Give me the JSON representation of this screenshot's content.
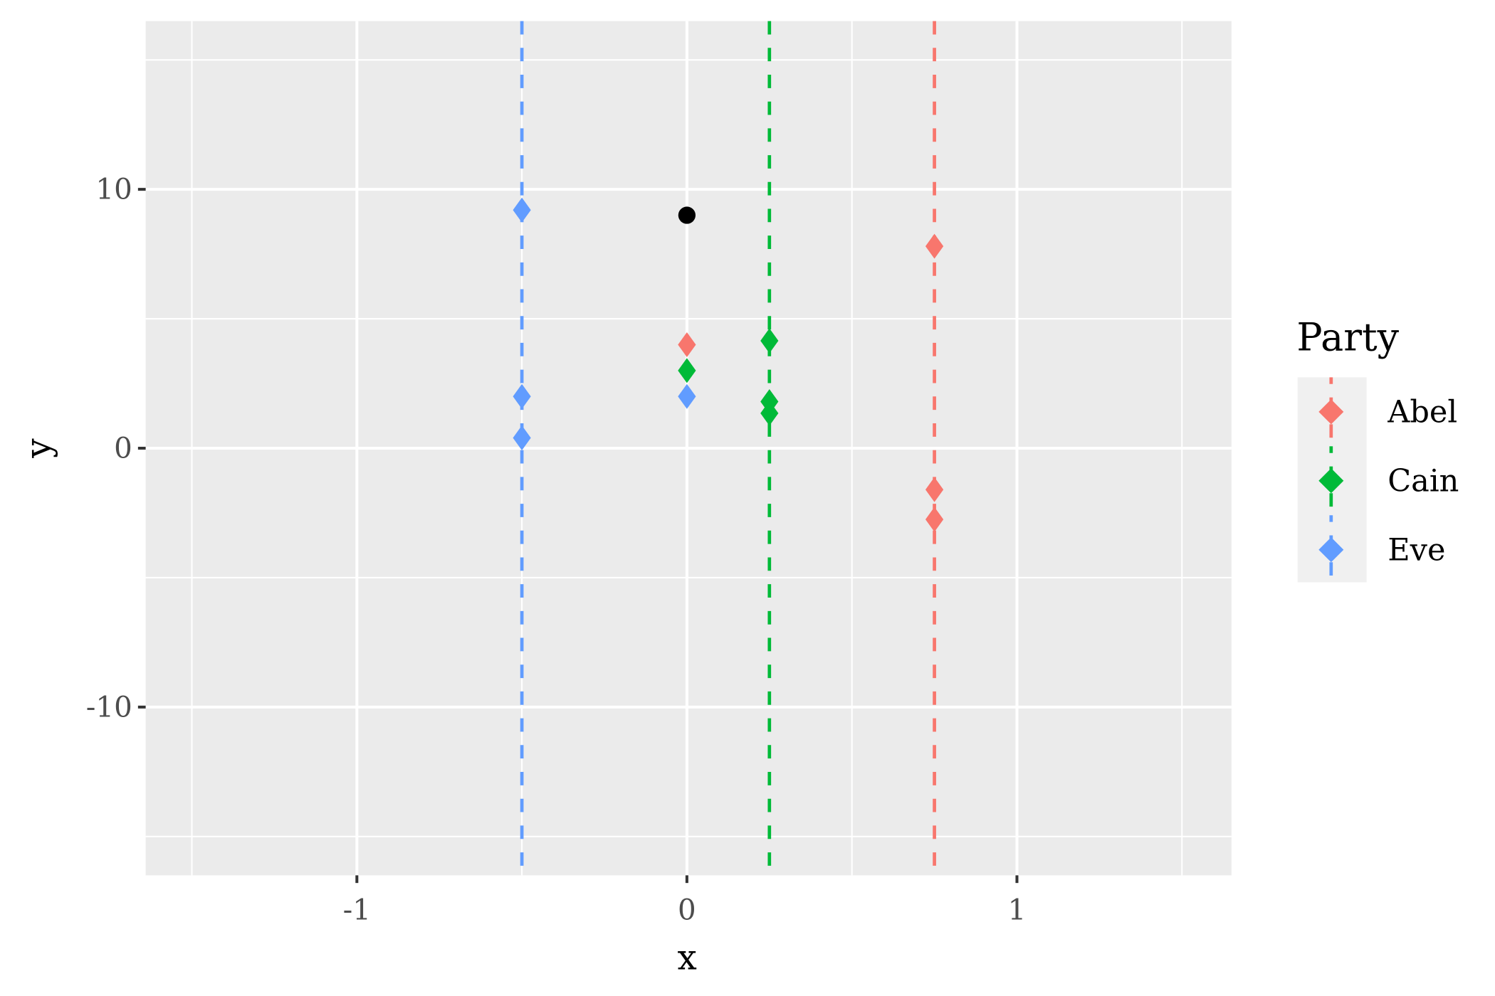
{
  "chart_data": {
    "type": "scatter",
    "title": "",
    "xlabel": "x",
    "ylabel": "y",
    "xlim": [
      -1.64,
      1.65
    ],
    "ylim": [
      -16.5,
      16.5
    ],
    "x_ticks": [
      -1,
      0,
      1
    ],
    "x_tick_labels": [
      "-1",
      "0",
      "1"
    ],
    "y_ticks": [
      -10,
      0,
      10
    ],
    "y_tick_labels": [
      "-10",
      "0",
      "10"
    ],
    "grid": true,
    "legend": {
      "title": "Party",
      "placement": "right"
    },
    "series": [
      {
        "name": "Abel",
        "color": "#F8766D",
        "marker": "diamond",
        "vline_x": 0.75,
        "points": [
          {
            "x": 0,
            "y": 4.0
          },
          {
            "x": 0.75,
            "y": 7.8
          },
          {
            "x": 0.75,
            "y": -1.6
          },
          {
            "x": 0.75,
            "y": -2.75
          }
        ]
      },
      {
        "name": "Cain",
        "color": "#00BA38",
        "marker": "diamond",
        "vline_x": 0.25,
        "points": [
          {
            "x": 0,
            "y": 3.0
          },
          {
            "x": 0.25,
            "y": 4.15
          },
          {
            "x": 0.25,
            "y": 1.8
          },
          {
            "x": 0.25,
            "y": 1.35
          }
        ]
      },
      {
        "name": "Eve",
        "color": "#619CFF",
        "marker": "diamond",
        "vline_x": -0.5,
        "points": [
          {
            "x": 0,
            "y": 2.0
          },
          {
            "x": -0.5,
            "y": 9.2
          },
          {
            "x": -0.5,
            "y": 2.0
          },
          {
            "x": -0.5,
            "y": 0.4
          }
        ]
      }
    ],
    "extra_points": [
      {
        "x": 0,
        "y": 9.0,
        "color": "#000000",
        "marker": "circle"
      }
    ]
  }
}
